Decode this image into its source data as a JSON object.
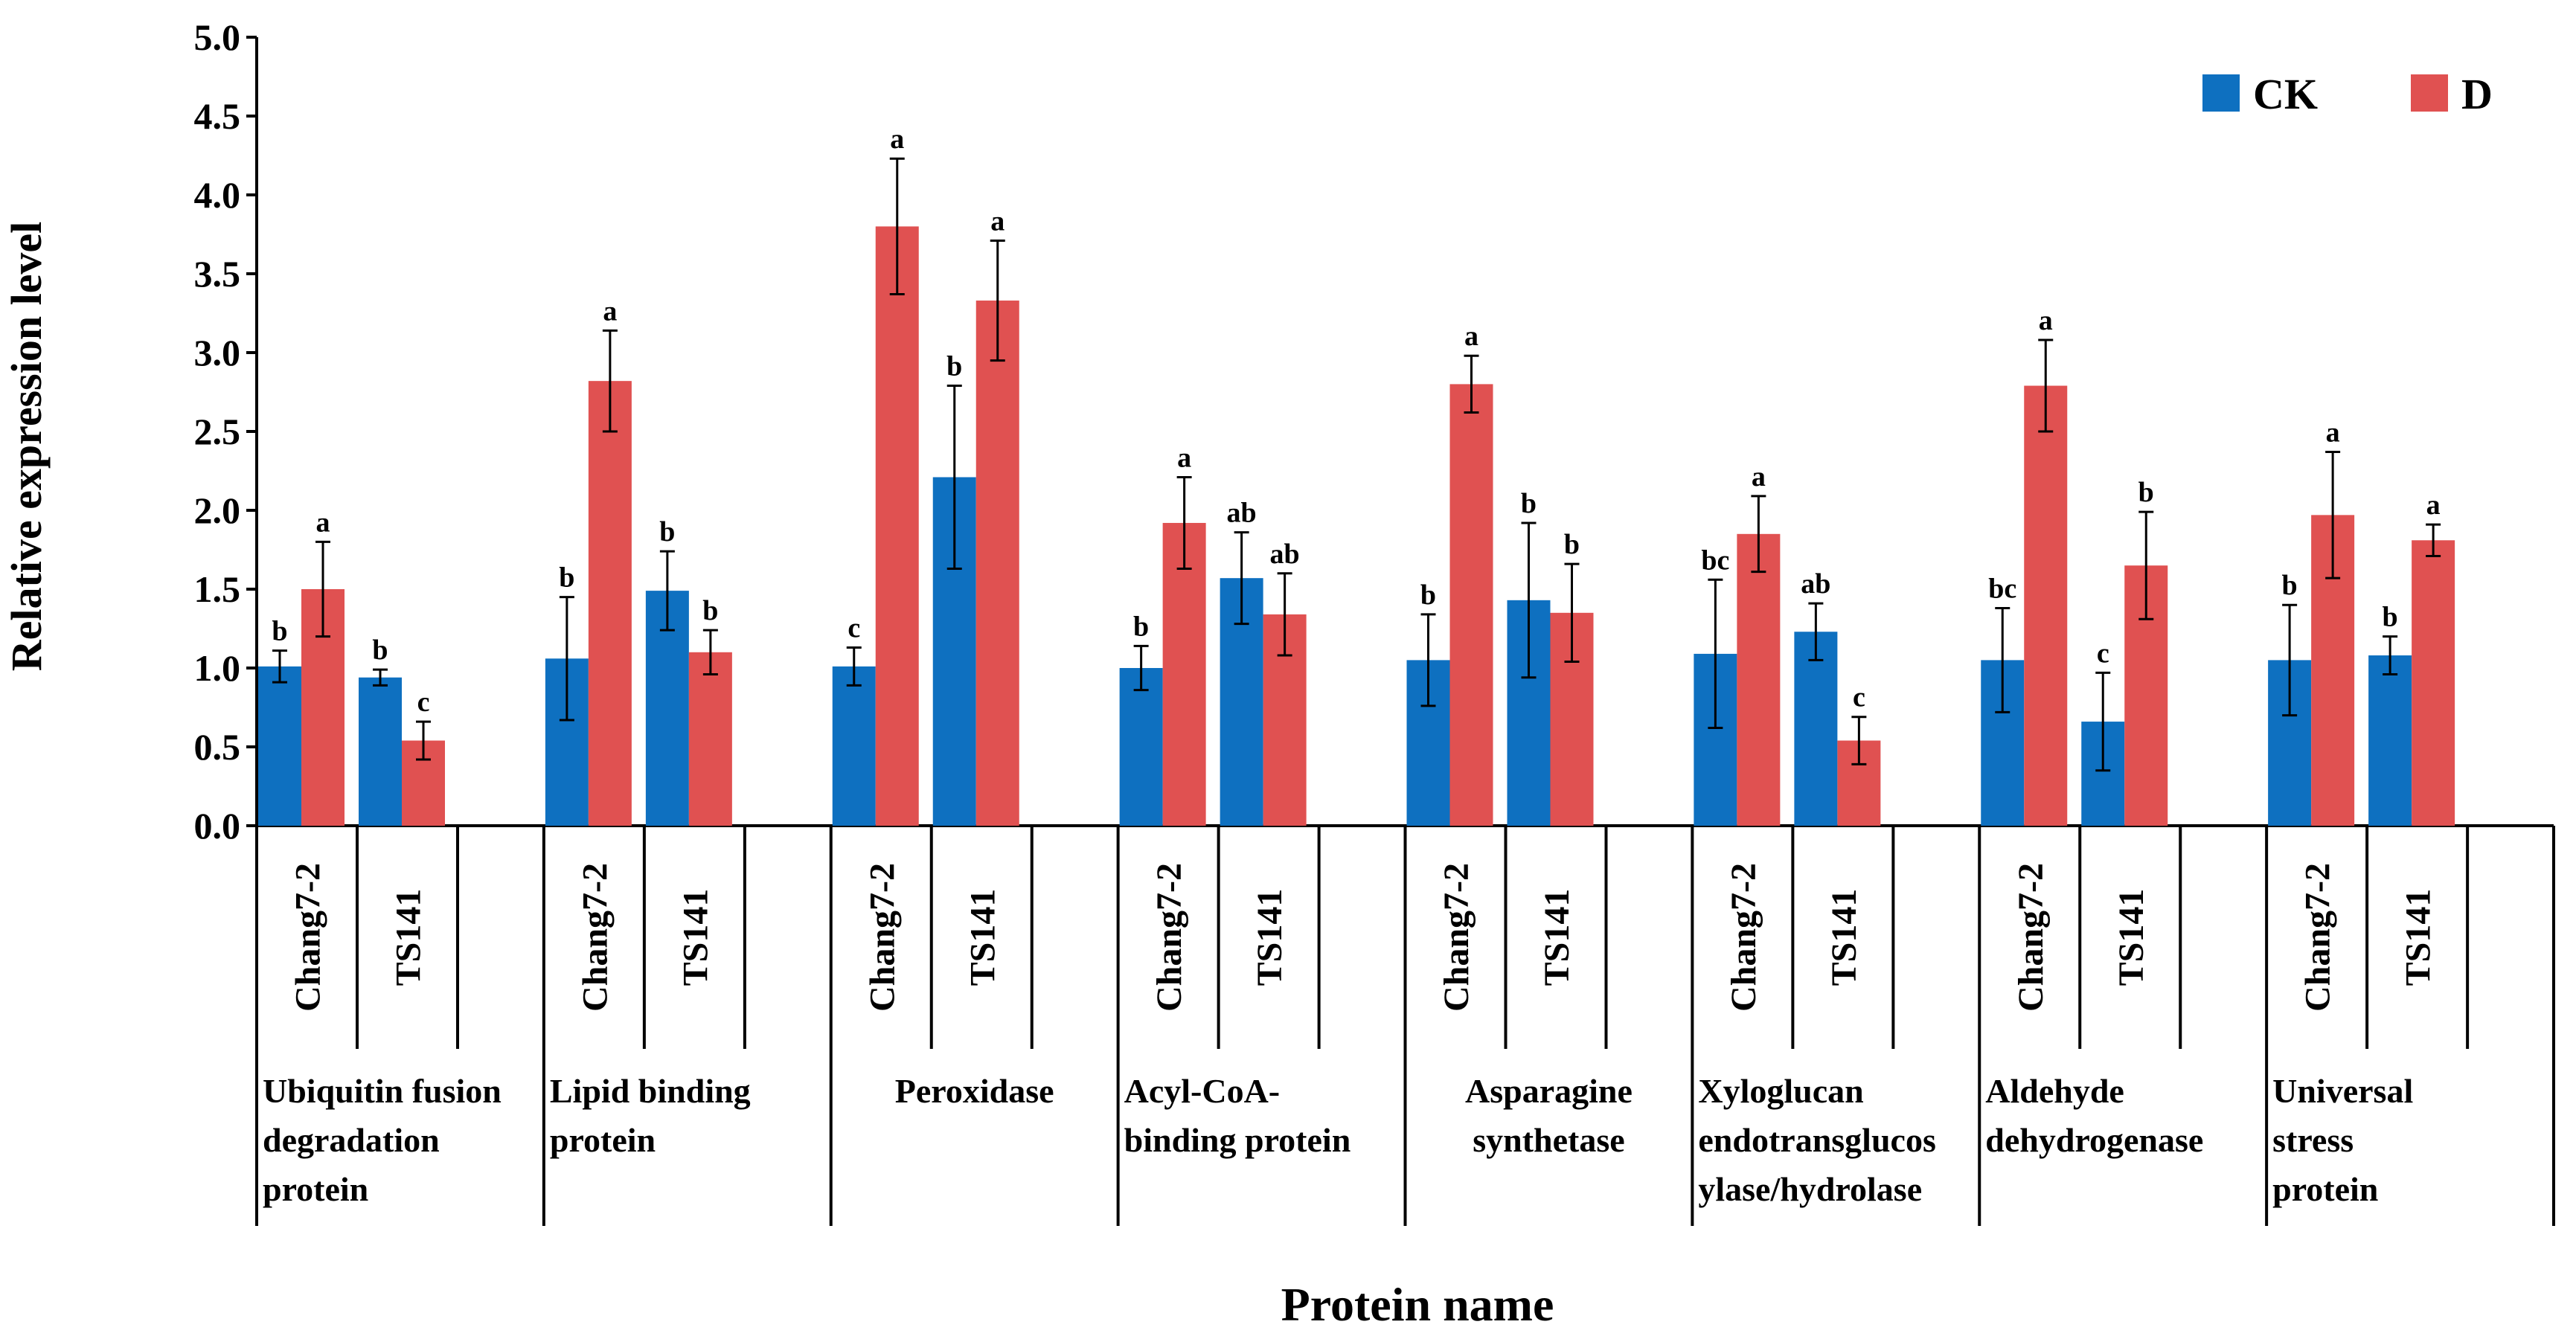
{
  "chart_data": {
    "type": "bar",
    "title": "",
    "xlabel": "Protein name",
    "ylabel": "Relative expression level",
    "ylim": [
      0,
      5.0
    ],
    "yticks": [
      "0.0",
      "0.5",
      "1.0",
      "1.5",
      "2.0",
      "2.5",
      "3.0",
      "3.5",
      "4.0",
      "4.5",
      "5.0"
    ],
    "grid": false,
    "legend_position": "top-right",
    "series": [
      {
        "name": "CK",
        "color": "#0e70c0"
      },
      {
        "name": "D",
        "color": "#e05151"
      }
    ],
    "groups": [
      {
        "name_lines": [
          "Ubiquitin fusion",
          "degradation",
          "protein"
        ],
        "align": "left",
        "cultivars": [
          {
            "name": "Chang7-2",
            "CK": 1.01,
            "CK_err": 0.1,
            "CK_sig": "b",
            "D": 1.5,
            "D_err": 0.3,
            "D_sig": "a"
          },
          {
            "name": "TS141",
            "CK": 0.94,
            "CK_err": 0.05,
            "CK_sig": "b",
            "D": 0.54,
            "D_err": 0.12,
            "D_sig": "c"
          }
        ]
      },
      {
        "name_lines": [
          "Lipid binding",
          "protein"
        ],
        "align": "left",
        "cultivars": [
          {
            "name": "Chang7-2",
            "CK": 1.06,
            "CK_err": 0.39,
            "CK_sig": "b",
            "D": 2.82,
            "D_err": 0.32,
            "D_sig": "a"
          },
          {
            "name": "TS141",
            "CK": 1.49,
            "CK_err": 0.25,
            "CK_sig": "b",
            "D": 1.1,
            "D_err": 0.14,
            "D_sig": "b"
          }
        ]
      },
      {
        "name_lines": [
          "Peroxidase"
        ],
        "align": "center",
        "cultivars": [
          {
            "name": "Chang7-2",
            "CK": 1.01,
            "CK_err": 0.12,
            "CK_sig": "c",
            "D": 3.8,
            "D_err": 0.43,
            "D_sig": "a"
          },
          {
            "name": "TS141",
            "CK": 2.21,
            "CK_err": 0.58,
            "CK_sig": "b",
            "D": 3.33,
            "D_err": 0.38,
            "D_sig": "a"
          }
        ]
      },
      {
        "name_lines": [
          "Acyl-CoA-",
          "binding protein"
        ],
        "align": "left",
        "cultivars": [
          {
            "name": "Chang7-2",
            "CK": 1.0,
            "CK_err": 0.14,
            "CK_sig": "b",
            "D": 1.92,
            "D_err": 0.29,
            "D_sig": "a"
          },
          {
            "name": "TS141",
            "CK": 1.57,
            "CK_err": 0.29,
            "CK_sig": "ab",
            "D": 1.34,
            "D_err": 0.26,
            "D_sig": "ab"
          }
        ]
      },
      {
        "name_lines": [
          "Asparagine",
          "synthetase"
        ],
        "align": "center",
        "cultivars": [
          {
            "name": "Chang7-2",
            "CK": 1.05,
            "CK_err": 0.29,
            "CK_sig": "b",
            "D": 2.8,
            "D_err": 0.18,
            "D_sig": "a"
          },
          {
            "name": "TS141",
            "CK": 1.43,
            "CK_err": 0.49,
            "CK_sig": "b",
            "D": 1.35,
            "D_err": 0.31,
            "D_sig": "b"
          }
        ]
      },
      {
        "name_lines": [
          "Xyloglucan",
          "endotransglucos",
          "ylase/hydrolase"
        ],
        "align": "left",
        "cultivars": [
          {
            "name": "Chang7-2",
            "CK": 1.09,
            "CK_err": 0.47,
            "CK_sig": "bc",
            "D": 1.85,
            "D_err": 0.24,
            "D_sig": "a"
          },
          {
            "name": "TS141",
            "CK": 1.23,
            "CK_err": 0.18,
            "CK_sig": "ab",
            "D": 0.54,
            "D_err": 0.15,
            "D_sig": "c"
          }
        ]
      },
      {
        "name_lines": [
          "Aldehyde",
          "dehydrogenase"
        ],
        "align": "left",
        "cultivars": [
          {
            "name": "Chang7-2",
            "CK": 1.05,
            "CK_err": 0.33,
            "CK_sig": "bc",
            "D": 2.79,
            "D_err": 0.29,
            "D_sig": "a"
          },
          {
            "name": "TS141",
            "CK": 0.66,
            "CK_err": 0.31,
            "CK_sig": "c",
            "D": 1.65,
            "D_err": 0.34,
            "D_sig": "b"
          }
        ]
      },
      {
        "name_lines": [
          "Universal",
          "stress",
          "protein"
        ],
        "align": "left",
        "cultivars": [
          {
            "name": "Chang7-2",
            "CK": 1.05,
            "CK_err": 0.35,
            "CK_sig": "b",
            "D": 1.97,
            "D_err": 0.4,
            "D_sig": "a"
          },
          {
            "name": "TS141",
            "CK": 1.08,
            "CK_err": 0.12,
            "CK_sig": "b",
            "D": 1.81,
            "D_err": 0.1,
            "D_sig": "a"
          }
        ]
      }
    ]
  }
}
